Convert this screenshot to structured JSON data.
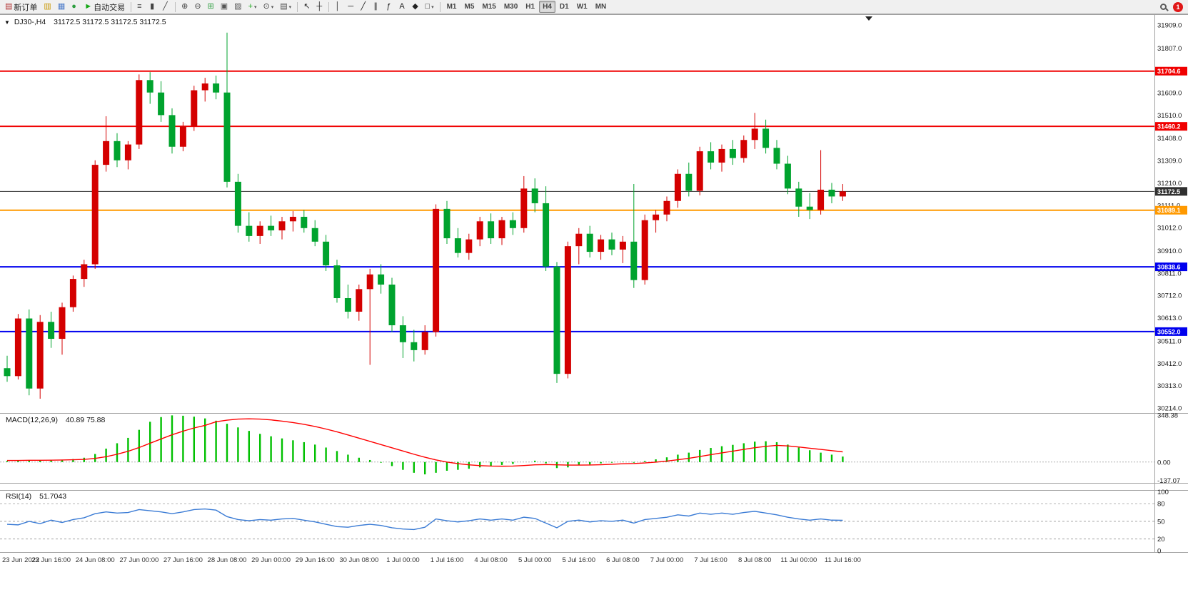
{
  "notification": {
    "count": "1"
  },
  "colors": {
    "up": "#d40000",
    "down": "#00a32e",
    "macd_hist": "#00c000",
    "macd_signal": "#ff0000",
    "rsi": "#3a7bd5",
    "line_red": "#f00000",
    "line_orange": "#ff9900",
    "line_blue": "#0000ee",
    "line_black": "#303030"
  },
  "toolbar": {
    "items": [
      {
        "type": "button",
        "name": "new-order-button",
        "icon": "new-order-icon",
        "icon_color": "#b03030",
        "label": "新订单"
      },
      {
        "type": "button",
        "name": "chart-button",
        "icon": "gold-chart-icon",
        "icon_color": "#c89600"
      },
      {
        "type": "button",
        "name": "profile-button",
        "icon": "profile-icon",
        "icon_color": "#4878c8"
      },
      {
        "type": "button",
        "name": "refresh-button",
        "icon": "globe-icon",
        "icon_color": "#2e9e40"
      },
      {
        "type": "button",
        "name": "autotrading-button",
        "icon": "play-icon",
        "icon_color": "#18a818",
        "label": "自动交易"
      },
      {
        "type": "sep"
      },
      {
        "type": "button",
        "name": "bar-chart-button",
        "icon": "bar-chart-icon",
        "icon_color": "#444444"
      },
      {
        "type": "button",
        "name": "candlestick-chart-button",
        "icon": "candlestick-icon",
        "icon_color": "#444444"
      },
      {
        "type": "button",
        "name": "line-chart-button",
        "icon": "line-chart-icon",
        "icon_color": "#444444"
      },
      {
        "type": "sep"
      },
      {
        "type": "button",
        "name": "zoom-in-button",
        "icon": "zoom-in-icon",
        "icon_color": "#444444"
      },
      {
        "type": "button",
        "name": "zoom-out-button",
        "icon": "zoom-out-icon",
        "icon_color": "#444444"
      },
      {
        "type": "button",
        "name": "tile-windows-button",
        "icon": "tile-windows-icon",
        "icon_color": "#2e9e40"
      },
      {
        "type": "button",
        "name": "cascade-windows-button",
        "icon": "cascade-windows-icon",
        "icon_color": "#555555"
      },
      {
        "type": "button",
        "name": "arrange-windows-button",
        "icon": "arrange-windows-icon",
        "icon_color": "#555555"
      },
      {
        "type": "button",
        "name": "indicators-button",
        "icon": "indicators-icon",
        "icon_color": "#18a818",
        "caret": true
      },
      {
        "type": "button",
        "name": "periods-button",
        "icon": "clock-icon",
        "icon_color": "#444444",
        "caret": true
      },
      {
        "type": "button",
        "name": "templates-button",
        "icon": "template-icon",
        "icon_color": "#444444",
        "caret": true
      },
      {
        "type": "sep"
      },
      {
        "type": "button",
        "name": "cursor-button",
        "icon": "cursor-icon",
        "icon_color": "#222222"
      },
      {
        "type": "button",
        "name": "crosshair-button",
        "icon": "crosshair-icon",
        "icon_color": "#222222"
      },
      {
        "type": "sep"
      },
      {
        "type": "button",
        "name": "vertical-line-button",
        "icon": "vertical-line-icon",
        "icon_color": "#222222"
      },
      {
        "type": "button",
        "name": "horizontal-line-button",
        "icon": "horizontal-line-icon",
        "icon_color": "#222222"
      },
      {
        "type": "button",
        "name": "trendline-button",
        "icon": "trendline-icon",
        "icon_color": "#222222"
      },
      {
        "type": "button",
        "name": "channel-button",
        "icon": "channel-icon",
        "icon_color": "#222222"
      },
      {
        "type": "button",
        "name": "fibonacci-button",
        "icon": "fibonacci-icon",
        "icon_color": "#222222"
      },
      {
        "type": "button",
        "name": "text-button",
        "icon": "text-icon",
        "icon_color": "#222222"
      },
      {
        "type": "button",
        "name": "arrows-button",
        "icon": "arrows-icon",
        "icon_color": "#222222"
      },
      {
        "type": "button",
        "name": "shapes-button",
        "icon": "shapes-icon",
        "icon_color": "#222222",
        "caret": true
      },
      {
        "type": "sep"
      },
      {
        "type": "tf",
        "name": "tf-m1",
        "label": "M1"
      },
      {
        "type": "tf",
        "name": "tf-m5",
        "label": "M5"
      },
      {
        "type": "tf",
        "name": "tf-m15",
        "label": "M15"
      },
      {
        "type": "tf",
        "name": "tf-m30",
        "label": "M30"
      },
      {
        "type": "tf",
        "name": "tf-h1",
        "label": "H1"
      },
      {
        "type": "tf",
        "name": "tf-h4",
        "label": "H4",
        "active": true
      },
      {
        "type": "tf",
        "name": "tf-d1",
        "label": "D1"
      },
      {
        "type": "tf",
        "name": "tf-w1",
        "label": "W1"
      },
      {
        "type": "tf",
        "name": "tf-mn",
        "label": "MN"
      }
    ]
  },
  "chart_data": [
    {
      "type": "candlestick",
      "title": "DJ30-,H4",
      "ohlc_display": "31172.5 31172.5 31172.5 31172.5",
      "ylim": [
        30195,
        31950
      ],
      "price_gridlines": [
        31909.0,
        31807.0,
        31609.0,
        31510.0,
        31408.0,
        31309.0,
        31210.0,
        31111.0,
        31012.0,
        30910.0,
        30811.0,
        30712.0,
        30613.0,
        30511.0,
        30412.0,
        30313.0,
        30214.0
      ],
      "hlines": [
        {
          "price": 31704.6,
          "label": "31704.6",
          "color": "#f00000",
          "width": 2
        },
        {
          "price": 31460.2,
          "label": "31460.2",
          "color": "#f00000",
          "width": 2
        },
        {
          "price": 31172.5,
          "label": "31172.5",
          "color": "#303030",
          "width": 1
        },
        {
          "price": 31089.1,
          "label": "31089.1",
          "color": "#ff9900",
          "width": 2
        },
        {
          "price": 30838.6,
          "label": "30838.6",
          "color": "#0000ee",
          "width": 2
        },
        {
          "price": 30552.0,
          "label": "30552.0",
          "color": "#0000ee",
          "width": 2
        }
      ],
      "time_label_step": 4,
      "time_labels": [
        "23 Jun 2022",
        "23 Jun 16:00",
        "24 Jun 08:00",
        "27 Jun 00:00",
        "27 Jun 16:00",
        "28 Jun 08:00",
        "29 Jun 00:00",
        "29 Jun 16:00",
        "30 Jun 08:00",
        "1 Jul 00:00",
        "1 Jul 16:00",
        "4 Jul 08:00",
        "5 Jul 00:00",
        "5 Jul 16:00",
        "6 Jul 08:00",
        "7 Jul 00:00",
        "7 Jul 16:00",
        "8 Jul 08:00",
        "11 Jul 00:00",
        "11 Jul 16:00"
      ],
      "candles": [
        [
          30390,
          30445,
          30330,
          30355
        ],
        [
          30355,
          30630,
          30340,
          30610
        ],
        [
          30610,
          30650,
          30270,
          30300
        ],
        [
          30300,
          30625,
          30255,
          30595
        ],
        [
          30595,
          30640,
          30480,
          30520
        ],
        [
          30520,
          30680,
          30450,
          30660
        ],
        [
          30660,
          30800,
          30640,
          30785
        ],
        [
          30785,
          30870,
          30750,
          30850
        ],
        [
          30850,
          31310,
          30830,
          31290
        ],
        [
          31290,
          31505,
          31260,
          31395
        ],
        [
          31395,
          31430,
          31280,
          31310
        ],
        [
          31310,
          31395,
          31270,
          31380
        ],
        [
          31380,
          31690,
          31360,
          31665
        ],
        [
          31665,
          31700,
          31560,
          31610
        ],
        [
          31610,
          31660,
          31480,
          31510
        ],
        [
          31510,
          31540,
          31340,
          31370
        ],
        [
          31370,
          31480,
          31350,
          31460
        ],
        [
          31460,
          31640,
          31440,
          31620
        ],
        [
          31620,
          31675,
          31570,
          31650
        ],
        [
          31650,
          31685,
          31580,
          31610
        ],
        [
          31610,
          31875,
          31190,
          31215
        ],
        [
          31215,
          31250,
          30990,
          31020
        ],
        [
          31020,
          31080,
          30950,
          30975
        ],
        [
          30975,
          31040,
          30940,
          31020
        ],
        [
          31020,
          31065,
          30975,
          31000
        ],
        [
          31000,
          31060,
          30960,
          31040
        ],
        [
          31040,
          31085,
          30995,
          31060
        ],
        [
          31060,
          31090,
          30990,
          31010
        ],
        [
          31010,
          31045,
          30930,
          30950
        ],
        [
          30950,
          30980,
          30820,
          30845
        ],
        [
          30845,
          30870,
          30680,
          30700
        ],
        [
          30700,
          30760,
          30610,
          30640
        ],
        [
          30640,
          30760,
          30600,
          30740
        ],
        [
          30740,
          30830,
          30405,
          30805
        ],
        [
          30805,
          30850,
          30720,
          30760
        ],
        [
          30760,
          30790,
          30550,
          30580
        ],
        [
          30580,
          30620,
          30435,
          30505
        ],
        [
          30505,
          30560,
          30420,
          30470
        ],
        [
          30470,
          30580,
          30450,
          30550
        ],
        [
          30550,
          31115,
          30530,
          31095
        ],
        [
          31095,
          31130,
          30940,
          30965
        ],
        [
          30965,
          31010,
          30880,
          30900
        ],
        [
          30900,
          30985,
          30870,
          30960
        ],
        [
          30960,
          31060,
          30930,
          31040
        ],
        [
          31040,
          31075,
          30940,
          30965
        ],
        [
          30965,
          31060,
          30935,
          31045
        ],
        [
          31045,
          31080,
          30980,
          31010
        ],
        [
          31010,
          31240,
          30990,
          31185
        ],
        [
          31185,
          31230,
          31080,
          31120
        ],
        [
          31120,
          31195,
          30820,
          30840
        ],
        [
          30840,
          30860,
          30325,
          30365
        ],
        [
          30365,
          30950,
          30345,
          30930
        ],
        [
          30930,
          31010,
          30850,
          30985
        ],
        [
          30985,
          31020,
          30880,
          30905
        ],
        [
          30905,
          30980,
          30870,
          30960
        ],
        [
          30960,
          30990,
          30890,
          30915
        ],
        [
          30915,
          30975,
          30855,
          30950
        ],
        [
          30950,
          31205,
          30745,
          30780
        ],
        [
          30780,
          31070,
          30760,
          31045
        ],
        [
          31045,
          31090,
          30990,
          31070
        ],
        [
          31070,
          31150,
          31040,
          31130
        ],
        [
          31130,
          31270,
          31100,
          31250
        ],
        [
          31250,
          31300,
          31150,
          31175
        ],
        [
          31175,
          31370,
          31155,
          31350
        ],
        [
          31350,
          31390,
          31270,
          31300
        ],
        [
          31300,
          31380,
          31260,
          31360
        ],
        [
          31360,
          31400,
          31290,
          31320
        ],
        [
          31320,
          31420,
          31300,
          31400
        ],
        [
          31400,
          31520,
          31360,
          31450
        ],
        [
          31450,
          31490,
          31340,
          31365
        ],
        [
          31365,
          31400,
          31270,
          31295
        ],
        [
          31295,
          31330,
          31160,
          31185
        ],
        [
          31185,
          31215,
          31060,
          31105
        ],
        [
          31105,
          31165,
          31050,
          31090
        ],
        [
          31090,
          31355,
          31070,
          31180
        ],
        [
          31180,
          31210,
          31120,
          31150
        ],
        [
          31150,
          31205,
          31130,
          31172.5
        ]
      ]
    },
    {
      "type": "bar",
      "name": "MACD",
      "label": "MACD(12,26,9)",
      "values_display": "40.89 75.88",
      "ylim": [
        -150,
        355
      ],
      "scale_labels": [
        "348.38",
        "0.00",
        "-137.07"
      ],
      "histogram": [
        8,
        10,
        12,
        10,
        14,
        16,
        22,
        32,
        60,
        100,
        140,
        180,
        240,
        300,
        335,
        348,
        345,
        338,
        325,
        308,
        285,
        258,
        232,
        210,
        192,
        176,
        162,
        148,
        130,
        108,
        82,
        55,
        32,
        15,
        -5,
        -30,
        -58,
        -80,
        -92,
        -80,
        -65,
        -58,
        -50,
        -40,
        -32,
        -22,
        -14,
        0,
        10,
        -10,
        -45,
        -40,
        -25,
        -18,
        -10,
        -5,
        2,
        -5,
        8,
        20,
        35,
        55,
        70,
        90,
        105,
        118,
        128,
        140,
        152,
        155,
        148,
        130,
        108,
        88,
        70,
        55,
        40.89
      ],
      "signal": [
        12,
        12,
        13,
        13,
        14,
        15,
        17,
        20,
        27,
        40,
        58,
        80,
        108,
        140,
        172,
        203,
        230,
        254,
        273,
        300,
        312,
        320,
        322,
        320,
        314,
        305,
        294,
        281,
        265,
        246,
        225,
        202,
        178,
        154,
        130,
        106,
        82,
        58,
        36,
        16,
        0,
        -12,
        -21,
        -27,
        -30,
        -31,
        -30,
        -26,
        -21,
        -19,
        -21,
        -23,
        -23,
        -22,
        -20,
        -17,
        -13,
        -11,
        -7,
        -1,
        7,
        17,
        28,
        41,
        55,
        68,
        81,
        94,
        107,
        117,
        124,
        120,
        112,
        103,
        94,
        85,
        75.88
      ]
    },
    {
      "type": "line",
      "name": "RSI",
      "label": "RSI(14)",
      "value_display": "51.7043",
      "ylim": [
        0,
        100
      ],
      "levels": [
        80,
        50,
        20
      ],
      "scale_labels": [
        "100",
        "80",
        "50",
        "20",
        "0"
      ],
      "values": [
        45,
        44,
        50,
        46,
        52,
        48,
        53,
        56,
        63,
        66,
        64,
        65,
        70,
        68,
        66,
        63,
        66,
        70,
        71,
        69,
        58,
        53,
        51,
        53,
        52,
        54,
        55,
        52,
        49,
        45,
        41,
        40,
        43,
        45,
        43,
        39,
        37,
        36,
        40,
        54,
        51,
        49,
        51,
        54,
        52,
        54,
        52,
        57,
        55,
        47,
        39,
        50,
        52,
        49,
        51,
        50,
        52,
        47,
        53,
        55,
        57,
        61,
        59,
        64,
        62,
        64,
        62,
        65,
        67,
        64,
        61,
        57,
        54,
        52,
        54,
        52,
        51.7043
      ]
    }
  ]
}
